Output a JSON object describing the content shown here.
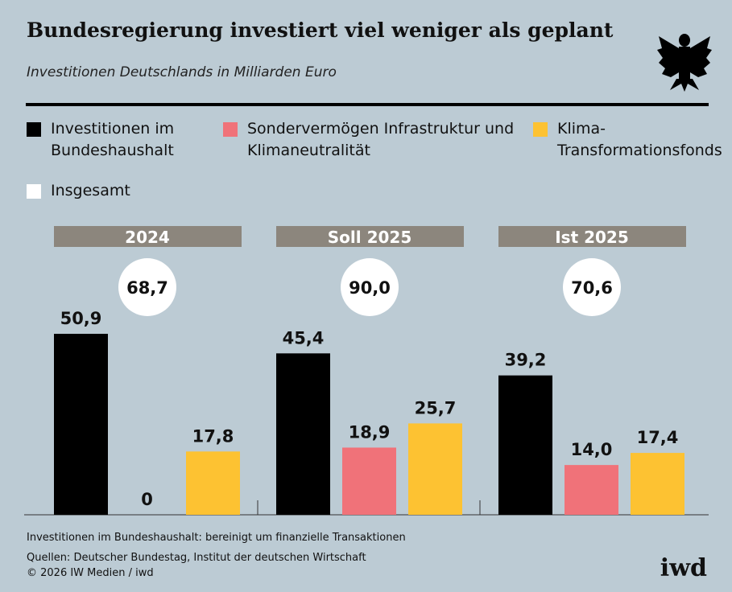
{
  "chart_data": {
    "type": "bar",
    "title": "Bundesregierung investiert viel weniger als geplant",
    "subtitle": "Investitionen Deutschlands in Milliarden Euro",
    "categories": [
      "2024",
      "Soll 2025",
      "Ist 2025"
    ],
    "series": [
      {
        "name": "Investitionen im Bundeshaushalt",
        "color": "#000000",
        "values": [
          50.9,
          45.4,
          39.2
        ],
        "value_labels": [
          "50,9",
          "45,4",
          "39,2"
        ]
      },
      {
        "name": "Sondervermögen Infrastruktur und Klimaneutralität",
        "color": "#f07279",
        "values": [
          0,
          18.9,
          14.0
        ],
        "value_labels": [
          "0",
          "18,9",
          "14,0"
        ]
      },
      {
        "name": "Klima-Transformationsfonds",
        "color": "#fdc232",
        "values": [
          17.8,
          25.7,
          17.4
        ],
        "value_labels": [
          "17,8",
          "25,7",
          "17,4"
        ]
      }
    ],
    "totals": {
      "name": "Insgesamt",
      "color": "#ffffff",
      "values": [
        68.7,
        90.0,
        70.6
      ],
      "value_labels": [
        "68,7",
        "90,0",
        "70,6"
      ]
    },
    "footnote": "Investitionen im Bundeshaushalt: bereinigt um finanzielle Transaktionen",
    "source": "Quellen: Deutscher Bundestag, Institut der deutschen Wirtschaft",
    "copyright": "© 2026 IW Medien / iwd",
    "logo": "iwd"
  }
}
